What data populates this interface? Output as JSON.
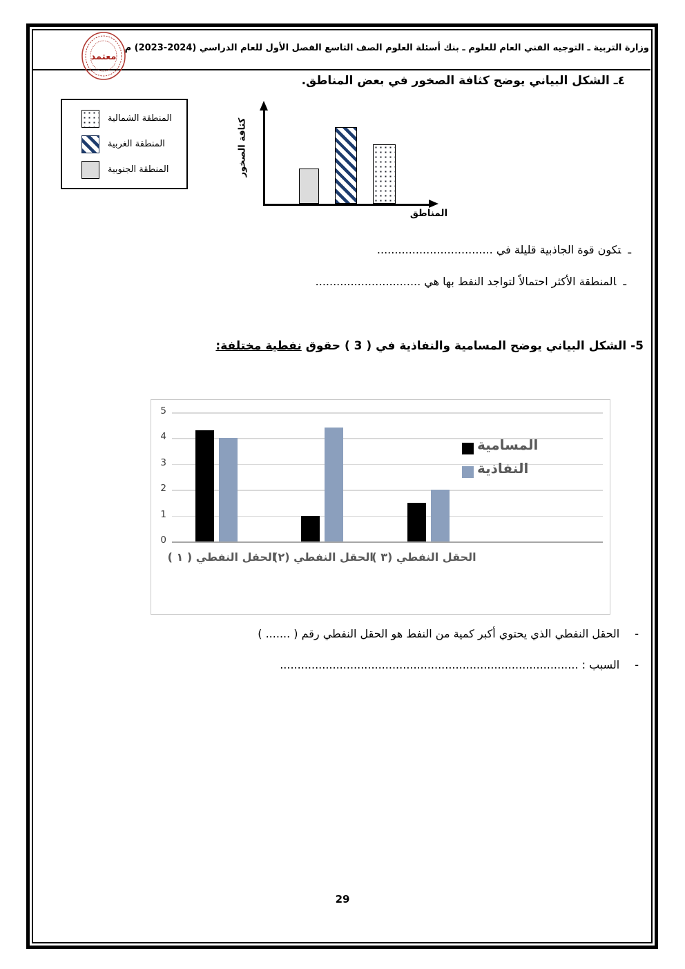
{
  "header": {
    "title": "وزارة التربية ـ التوجيه الفني العام للعلوم  ـ بنك أسئلة العلوم الصف التاسع الفصل الأول للعام الدراسي (2024-2023) م",
    "stamp_text": "معتمد"
  },
  "q4": {
    "title": "٤ـ  الشكل البياني يوضح كثافة الصخور في بعض المناطق.",
    "legend": [
      {
        "label": "المنطقة الشمالية",
        "pattern": "dotted"
      },
      {
        "label": "المنطقة الغربية",
        "pattern": "hatch"
      },
      {
        "label": "المنطقة الجنوبية",
        "pattern": "solid"
      }
    ],
    "chart_data": {
      "type": "bar",
      "ylabel": "كثافة الصخور",
      "xlabel": "المناطق",
      "categories": [
        "المنطقة الجنوبية",
        "المنطقة الغربية",
        "المنطقة الشمالية"
      ],
      "patterns": [
        "solid",
        "hatch",
        "dotted"
      ],
      "values_relative": [
        1.9,
        4.1,
        3.2
      ],
      "note": "axes unlabeled numerically; heights relative",
      "grid": false
    },
    "sub_questions": [
      {
        "bullet": "ـ",
        "text": "تكون قوة الجاذبية قليلة في ................................."
      },
      {
        "bullet": "ـ",
        "text": "المنطقة الأكثر احتمالاً لتواجد النفط بها هي .............................."
      }
    ]
  },
  "q5": {
    "title_main": "5- الشكل البياني يوضح المسامية والنفاذية في ( 3 ) حقوق",
    "title_underlined": "نفطية مختلفة:",
    "chart_data": {
      "type": "bar",
      "categories": [
        "الحقل النفطي ( ١ )",
        "الحقل النفطي (٢)",
        "الحقل النفطي (٣ )"
      ],
      "series": [
        {
          "name": "المسامية",
          "color": "#000000",
          "values": [
            4.3,
            1.0,
            1.5
          ]
        },
        {
          "name": "النفاذية",
          "color": "#8b9fbd",
          "values": [
            4.0,
            4.4,
            2.0
          ]
        }
      ],
      "ylim": [
        0,
        5
      ],
      "yticks": [
        0,
        1,
        2,
        3,
        4,
        5
      ],
      "grid": true,
      "legend_position": "right"
    },
    "sub_questions": [
      {
        "bullet": "-",
        "text": "الحقل النفطي الذي يحتوي أكبر كمية من النفط هو الحقل النفطي رقم ( ....... )"
      },
      {
        "bullet": "-",
        "text": "السبب : ....................................................................................."
      }
    ]
  },
  "page_number": "29"
}
